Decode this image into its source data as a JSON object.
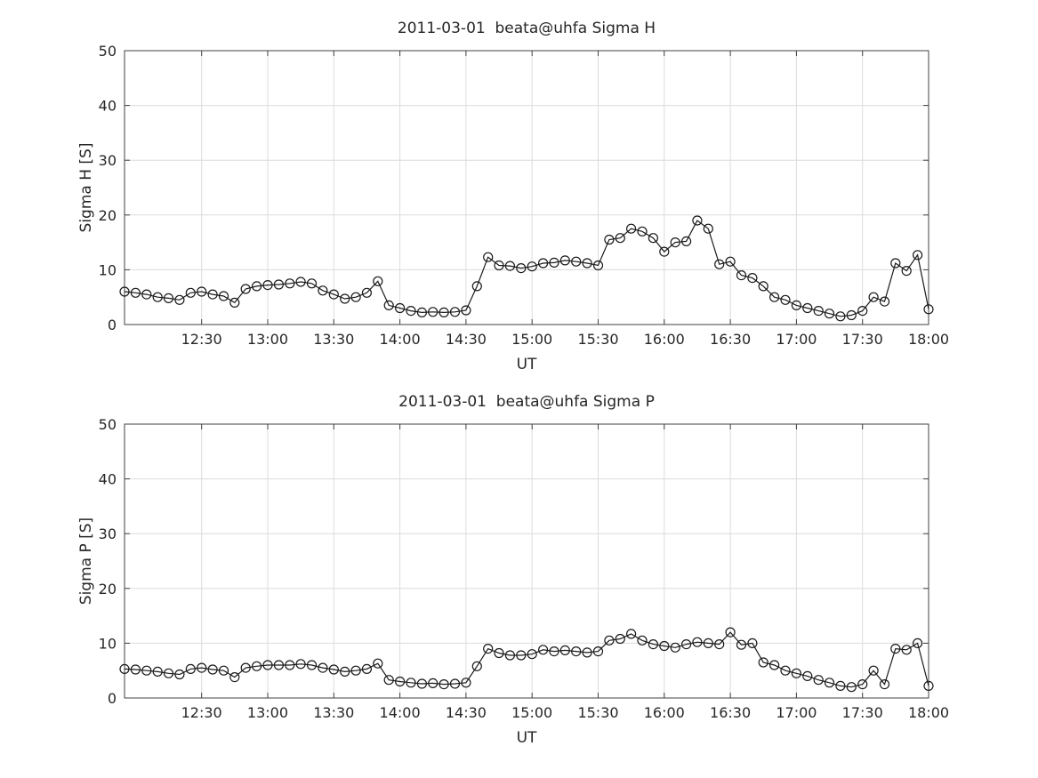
{
  "style": {
    "grid_color": "#dcdcdc",
    "axis_color": "#404040",
    "text_color": "#262626",
    "line_color": "#1a1a1a",
    "background": "#ffffff"
  },
  "chart_data": [
    {
      "type": "line",
      "title": "2011-03-01  beata@uhfa Sigma H",
      "xlabel": "UT",
      "ylabel": "Sigma H [S]",
      "ylim": [
        0,
        50
      ],
      "y_ticks": [
        0,
        10,
        20,
        30,
        40,
        50
      ],
      "xlim": [
        715,
        1080
      ],
      "x_start_min": 715,
      "x_step_min": 5,
      "x_tick_minutes": [
        750,
        780,
        810,
        840,
        870,
        900,
        930,
        960,
        990,
        1020,
        1050,
        1080
      ],
      "x_tick_labels": [
        "12:30",
        "13:00",
        "13:30",
        "14:00",
        "14:30",
        "15:00",
        "15:30",
        "16:00",
        "16:30",
        "17:00",
        "17:30",
        "18:00"
      ],
      "marker": "circle",
      "grid": true,
      "legend": false,
      "values": [
        6.0,
        5.8,
        5.5,
        5.0,
        4.8,
        4.5,
        5.8,
        6.0,
        5.5,
        5.2,
        4.0,
        6.5,
        7.0,
        7.2,
        7.3,
        7.5,
        7.8,
        7.5,
        6.2,
        5.5,
        4.7,
        5.0,
        5.8,
        7.9,
        3.5,
        3.0,
        2.5,
        2.2,
        2.3,
        2.2,
        2.3,
        2.6,
        7.0,
        12.3,
        10.8,
        10.7,
        10.3,
        10.6,
        11.2,
        11.3,
        11.7,
        11.5,
        11.2,
        10.8,
        15.5,
        15.8,
        17.5,
        17.0,
        15.8,
        13.3,
        15.0,
        15.2,
        19.0,
        17.5,
        11.0,
        11.5,
        9.0,
        8.5,
        7.0,
        5.0,
        4.5,
        3.5,
        3.0,
        2.5,
        2.0,
        1.5,
        1.7,
        2.5,
        5.0,
        4.2,
        11.2,
        9.8,
        12.7,
        2.8
      ]
    },
    {
      "type": "line",
      "title": "2011-03-01  beata@uhfa Sigma P",
      "xlabel": "UT",
      "ylabel": "Sigma P [S]",
      "ylim": [
        0,
        50
      ],
      "y_ticks": [
        0,
        10,
        20,
        30,
        40,
        50
      ],
      "xlim": [
        715,
        1080
      ],
      "x_start_min": 715,
      "x_step_min": 5,
      "x_tick_minutes": [
        750,
        780,
        810,
        840,
        870,
        900,
        930,
        960,
        990,
        1020,
        1050,
        1080
      ],
      "x_tick_labels": [
        "12:30",
        "13:00",
        "13:30",
        "14:00",
        "14:30",
        "15:00",
        "15:30",
        "16:00",
        "16:30",
        "17:00",
        "17:30",
        "18:00"
      ],
      "marker": "circle",
      "grid": true,
      "legend": false,
      "values": [
        5.3,
        5.2,
        5.0,
        4.8,
        4.5,
        4.3,
        5.3,
        5.5,
        5.2,
        5.0,
        3.8,
        5.5,
        5.8,
        6.0,
        6.0,
        6.0,
        6.2,
        6.0,
        5.5,
        5.2,
        4.8,
        5.0,
        5.3,
        6.3,
        3.3,
        3.0,
        2.8,
        2.6,
        2.7,
        2.5,
        2.6,
        2.8,
        5.8,
        9.0,
        8.2,
        7.8,
        7.8,
        8.0,
        8.8,
        8.5,
        8.7,
        8.5,
        8.3,
        8.5,
        10.5,
        10.8,
        11.7,
        10.5,
        9.8,
        9.5,
        9.2,
        9.8,
        10.2,
        10.0,
        9.8,
        12.0,
        9.7,
        10.0,
        6.5,
        6.0,
        5.0,
        4.5,
        4.0,
        3.3,
        2.8,
        2.2,
        2.0,
        2.5,
        5.0,
        2.5,
        9.0,
        8.8,
        10.0,
        2.2
      ]
    }
  ]
}
